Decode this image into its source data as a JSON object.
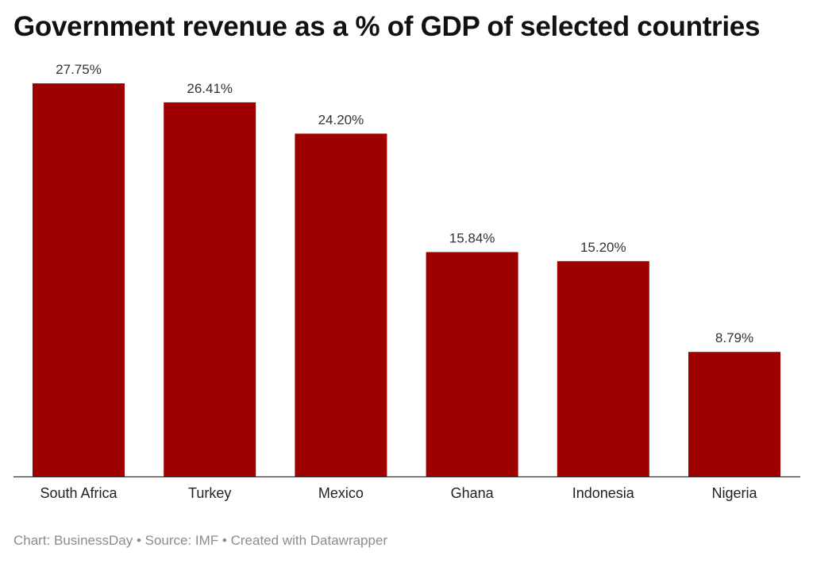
{
  "chart_data": {
    "type": "bar",
    "title": "Government revenue as a % of GDP of selected countries",
    "categories": [
      "South Africa",
      "Turkey",
      "Mexico",
      "Ghana",
      "Indonesia",
      "Nigeria"
    ],
    "values": [
      27.75,
      26.41,
      24.2,
      15.84,
      15.2,
      8.79
    ],
    "value_labels": [
      "27.75%",
      "26.41%",
      "24.20%",
      "15.84%",
      "15.20%",
      "8.79%"
    ],
    "xlabel": "",
    "ylabel": "",
    "ylim": [
      0,
      27.75
    ],
    "grid": false,
    "legend": "none",
    "bar_color": "#9e0000"
  },
  "footer": "Chart: BusinessDay • Source: IMF • Created with Datawrapper"
}
